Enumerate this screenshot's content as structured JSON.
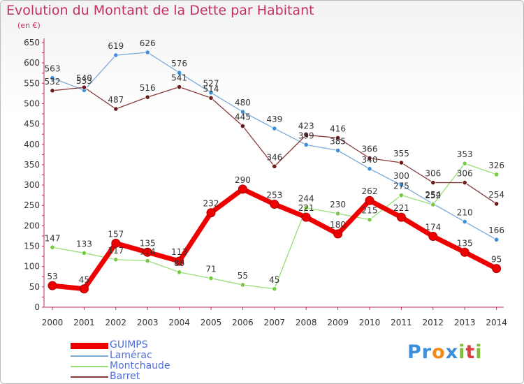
{
  "header": {
    "title": "Evolution du Montant de la Dette par Habitant",
    "unit": "(en €)"
  },
  "logo": {
    "text": "Proxiti",
    "letters": [
      {
        "ch": "P",
        "color": "#3c8fd8"
      },
      {
        "ch": "r",
        "color": "#3c8fd8"
      },
      {
        "ch": "o",
        "color": "#f28a1c"
      },
      {
        "ch": "x",
        "color": "#3c8fd8"
      },
      {
        "ch": "i",
        "color": "#7dbb3c"
      },
      {
        "ch": "t",
        "color": "#e03c3c"
      },
      {
        "ch": "i",
        "color": "#7dbb3c"
      }
    ]
  },
  "chart_data": {
    "type": "line",
    "title": "Evolution du Montant de la Dette par Habitant",
    "ylabel": "(en €)",
    "xlabel": "",
    "x": [
      "2000",
      "2001",
      "2002",
      "2003",
      "2004",
      "2005",
      "2006",
      "2007",
      "2008",
      "2009",
      "2010",
      "2011",
      "2012",
      "2013",
      "2014"
    ],
    "ylim": [
      0,
      650
    ],
    "yticks": [
      0,
      50,
      100,
      150,
      200,
      250,
      300,
      350,
      400,
      450,
      500,
      550,
      600,
      650
    ],
    "grid": false,
    "legend_position": "bottom-left",
    "series": [
      {
        "name": "GUIMPS",
        "color": "#ee0000",
        "marker_color": "#ee0000",
        "bold": true,
        "values": [
          53,
          45,
          157,
          135,
          113,
          232,
          290,
          253,
          221,
          180,
          262,
          221,
          174,
          135,
          95
        ]
      },
      {
        "name": "Lamérac",
        "color": "#7aaad8",
        "marker_color": "#3d8fd8",
        "bold": false,
        "values": [
          563,
          533,
          619,
          626,
          576,
          527,
          480,
          439,
          399,
          385,
          340,
          300,
          254,
          210,
          166
        ]
      },
      {
        "name": "Montchaude",
        "color": "#99dd77",
        "marker_color": "#77cc44",
        "bold": false,
        "values": [
          147,
          133,
          117,
          114,
          86,
          71,
          55,
          45,
          244,
          230,
          215,
          275,
          252,
          353,
          326
        ]
      },
      {
        "name": "Barret",
        "color": "#8a3a3a",
        "marker_color": "#6b1a1a",
        "bold": false,
        "values": [
          532,
          540,
          487,
          516,
          541,
          514,
          445,
          346,
          423,
          416,
          366,
          355,
          306,
          306,
          254
        ]
      }
    ]
  }
}
